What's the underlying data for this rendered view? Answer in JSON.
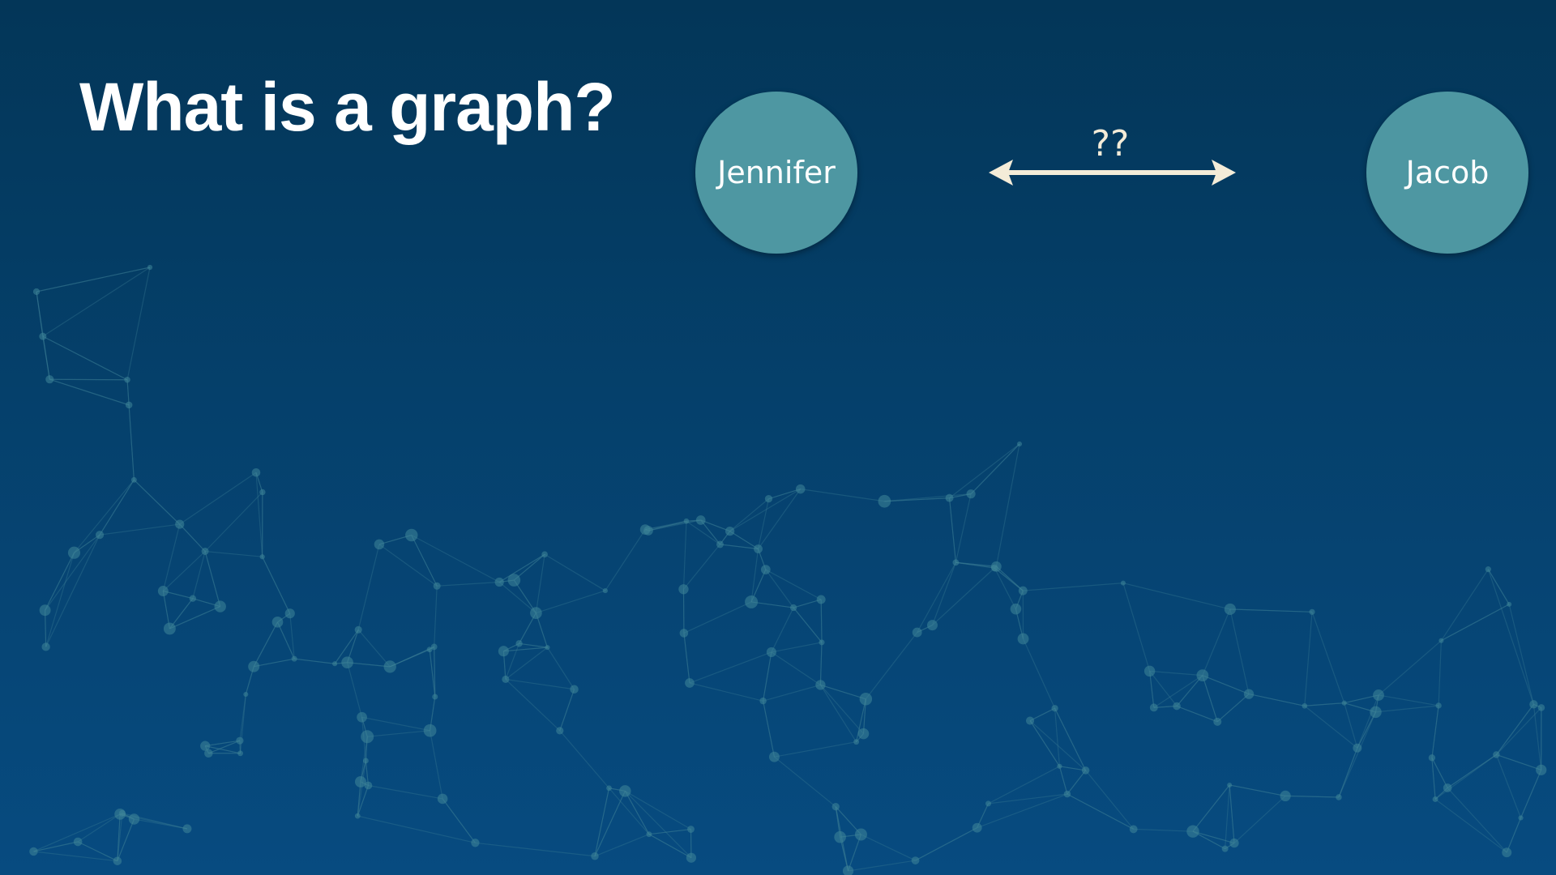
{
  "slide": {
    "title": "What is a graph?",
    "nodes": [
      {
        "label": "Jennifer"
      },
      {
        "label": "Jacob"
      }
    ],
    "edge": {
      "label": "??",
      "direction": "bidirectional"
    }
  },
  "colors": {
    "background": "#04406a",
    "node_fill": "#4e97a2",
    "arrow": "#f4ecd8",
    "title": "#ffffff"
  }
}
